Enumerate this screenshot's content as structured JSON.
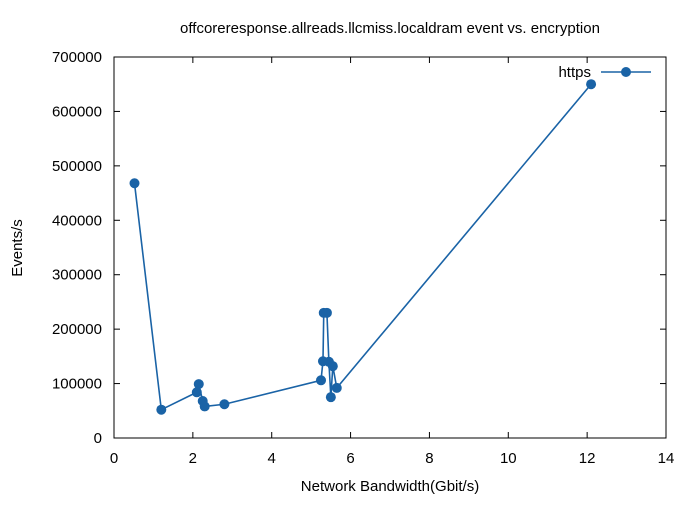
{
  "chart_data": {
    "type": "line",
    "title": "offcoreresponse.allreads.llcmiss.localdram event vs. encryption",
    "xlabel": "Network Bandwidth(Gbit/s)",
    "ylabel": "Events/s",
    "xlim": [
      0,
      14
    ],
    "ylim": [
      0,
      700000
    ],
    "xticks": [
      0,
      2,
      4,
      6,
      8,
      10,
      12,
      14
    ],
    "yticks": [
      0,
      100000,
      200000,
      300000,
      400000,
      500000,
      600000,
      700000
    ],
    "grid": false,
    "legend_position": "top-right",
    "series": [
      {
        "name": "https",
        "color": "#1a63a6",
        "marker": "circle",
        "x": [
          0.52,
          1.2,
          2.1,
          2.15,
          2.25,
          2.3,
          2.8,
          5.25,
          5.3,
          5.32,
          5.4,
          5.45,
          5.5,
          5.55,
          5.65,
          12.1
        ],
        "y": [
          468000,
          52000,
          84000,
          99000,
          68000,
          58000,
          62000,
          106000,
          141000,
          230000,
          230000,
          140000,
          75000,
          132000,
          92000,
          650000
        ]
      }
    ]
  }
}
